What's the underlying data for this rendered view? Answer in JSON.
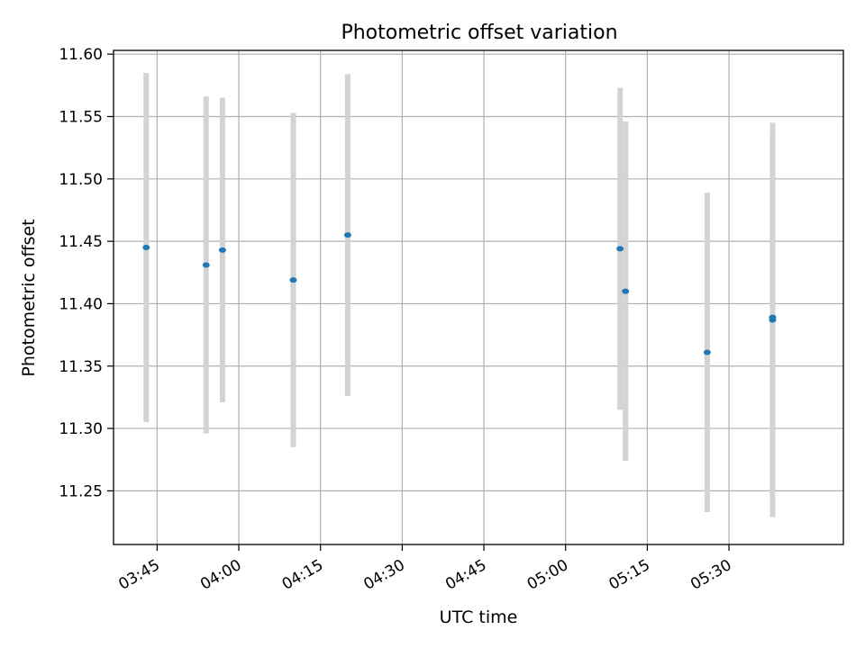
{
  "chart_data": {
    "type": "scatter",
    "title": "Photometric offset variation",
    "xlabel": "UTC time",
    "ylabel": "Photometric offset",
    "xlim": [
      "03:37",
      "05:51"
    ],
    "ylim": [
      11.207,
      11.603
    ],
    "grid": true,
    "x_ticks": [
      "03:45",
      "04:00",
      "04:15",
      "04:30",
      "04:45",
      "05:00",
      "05:15",
      "05:30"
    ],
    "y_ticks": [
      "11.25",
      "11.30",
      "11.35",
      "11.40",
      "11.45",
      "11.50",
      "11.55",
      "11.60"
    ],
    "series": [
      {
        "marker_color": "#1f77b4",
        "errorbar_color": "#d3d3d3",
        "points": [
          {
            "time": "03:43",
            "y": 11.445,
            "err": 0.14
          },
          {
            "time": "03:54",
            "y": 11.431,
            "err": 0.135
          },
          {
            "time": "03:57",
            "y": 11.443,
            "err": 0.122
          },
          {
            "time": "04:10",
            "y": 11.419,
            "err": 0.134
          },
          {
            "time": "04:20",
            "y": 11.455,
            "err": 0.129
          },
          {
            "time": "05:10",
            "y": 11.444,
            "err": 0.129
          },
          {
            "time": "05:11",
            "y": 11.41,
            "err": 0.136
          },
          {
            "time": "05:26",
            "y": 11.361,
            "err": 0.128
          },
          {
            "time": "05:38",
            "y": 11.387,
            "err": 0.158
          },
          {
            "time": "05:38",
            "y": 11.389,
            "err": 0.141
          }
        ]
      }
    ]
  }
}
